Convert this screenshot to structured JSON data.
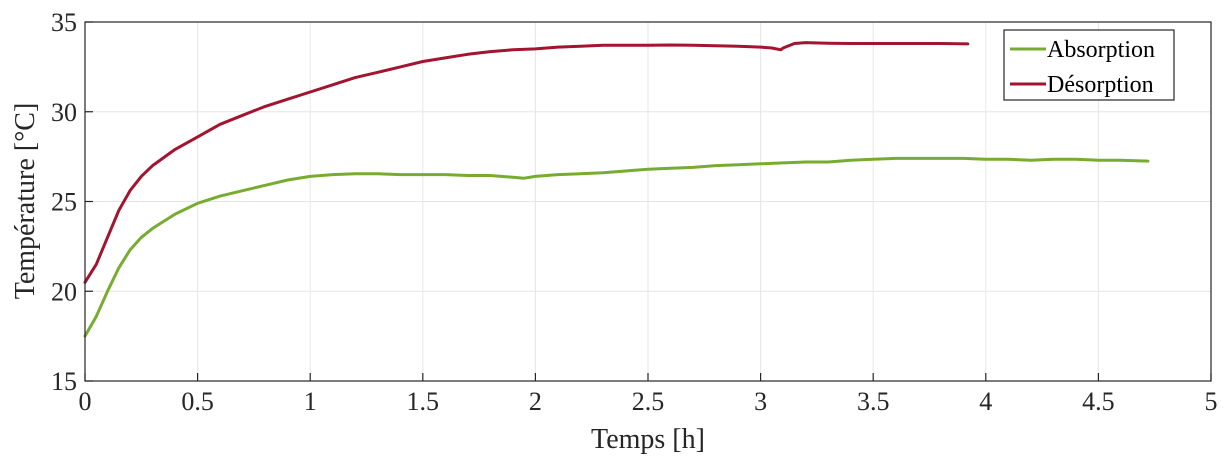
{
  "chart_data": {
    "type": "line",
    "title": "",
    "xlabel": "Temps [h]",
    "ylabel": "Température [°C]",
    "xlim": [
      0,
      5
    ],
    "ylim": [
      15,
      35
    ],
    "xticks": [
      0,
      0.5,
      1,
      1.5,
      2,
      2.5,
      3,
      3.5,
      4,
      4.5,
      5
    ],
    "xtick_labels": [
      "0",
      "0.5",
      "1",
      "1.5",
      "2",
      "2.5",
      "3",
      "3.5",
      "4",
      "4.5",
      "5"
    ],
    "yticks": [
      15,
      20,
      25,
      30,
      35
    ],
    "ytick_labels": [
      "15",
      "20",
      "25",
      "30",
      "35"
    ],
    "grid": true,
    "legend_position": "top-right",
    "series": [
      {
        "name": "Absorption",
        "color": "#77ac30",
        "x": [
          0,
          0.05,
          0.1,
          0.15,
          0.2,
          0.25,
          0.3,
          0.4,
          0.5,
          0.6,
          0.7,
          0.8,
          0.9,
          1.0,
          1.1,
          1.2,
          1.3,
          1.4,
          1.5,
          1.6,
          1.7,
          1.8,
          1.9,
          1.95,
          2.0,
          2.1,
          2.2,
          2.3,
          2.4,
          2.5,
          2.6,
          2.7,
          2.8,
          2.9,
          3.0,
          3.1,
          3.2,
          3.3,
          3.4,
          3.5,
          3.6,
          3.7,
          3.8,
          3.9,
          4.0,
          4.1,
          4.2,
          4.3,
          4.4,
          4.5,
          4.6,
          4.72
        ],
        "values": [
          17.5,
          18.6,
          20.0,
          21.3,
          22.3,
          23.0,
          23.5,
          24.3,
          24.9,
          25.3,
          25.6,
          25.9,
          26.2,
          26.4,
          26.5,
          26.55,
          26.55,
          26.5,
          26.5,
          26.5,
          26.45,
          26.45,
          26.35,
          26.3,
          26.4,
          26.5,
          26.55,
          26.6,
          26.7,
          26.8,
          26.85,
          26.9,
          27.0,
          27.05,
          27.1,
          27.15,
          27.2,
          27.2,
          27.3,
          27.35,
          27.4,
          27.4,
          27.4,
          27.4,
          27.35,
          27.35,
          27.3,
          27.35,
          27.35,
          27.3,
          27.3,
          27.25
        ]
      },
      {
        "name": "Désorption",
        "color": "#a2142f",
        "x": [
          0,
          0.05,
          0.1,
          0.15,
          0.2,
          0.25,
          0.3,
          0.4,
          0.5,
          0.6,
          0.7,
          0.8,
          0.9,
          1.0,
          1.1,
          1.2,
          1.3,
          1.4,
          1.5,
          1.6,
          1.7,
          1.8,
          1.9,
          2.0,
          2.1,
          2.2,
          2.3,
          2.4,
          2.5,
          2.6,
          2.7,
          2.8,
          2.9,
          3.0,
          3.05,
          3.09,
          3.1,
          3.15,
          3.2,
          3.3,
          3.4,
          3.5,
          3.6,
          3.7,
          3.8,
          3.92
        ],
        "values": [
          20.5,
          21.5,
          23.0,
          24.5,
          25.6,
          26.4,
          27.0,
          27.9,
          28.6,
          29.3,
          29.8,
          30.3,
          30.7,
          31.1,
          31.5,
          31.9,
          32.2,
          32.5,
          32.8,
          33.0,
          33.2,
          33.35,
          33.45,
          33.5,
          33.6,
          33.65,
          33.7,
          33.7,
          33.7,
          33.72,
          33.7,
          33.68,
          33.65,
          33.6,
          33.55,
          33.45,
          33.55,
          33.8,
          33.85,
          33.82,
          33.8,
          33.8,
          33.8,
          33.8,
          33.8,
          33.78
        ]
      }
    ]
  }
}
